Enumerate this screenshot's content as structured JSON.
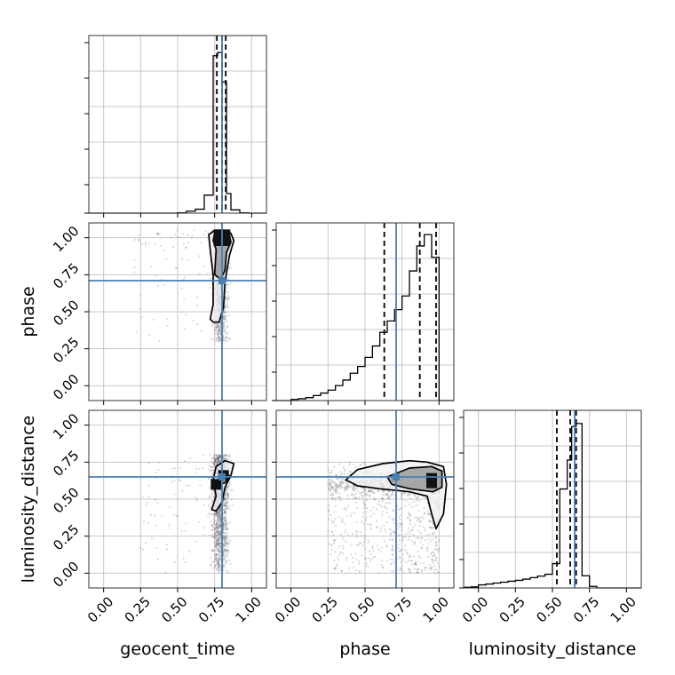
{
  "chart_data": {
    "type": "corner",
    "parameters": [
      "geocent_time",
      "phase",
      "luminosity_distance"
    ],
    "truths": {
      "geocent_time": 0.8,
      "phase": 0.71,
      "luminosity_distance": 0.65
    },
    "axis_range": [
      -0.1,
      1.1
    ],
    "tick_labels": [
      "0.00",
      "0.25",
      "0.50",
      "0.75",
      "1.00"
    ],
    "tick_values": [
      0,
      0.25,
      0.5,
      0.75,
      1.0
    ],
    "grid": true,
    "colors": {
      "truth": "#4a7fb5",
      "hist": "#000000",
      "contour": "#000000",
      "points": "#555555",
      "grid": "#c8c8c8"
    },
    "histograms": {
      "geocent_time": {
        "bins": [
          -0.1,
          -0.04,
          0.02,
          0.08,
          0.14,
          0.2,
          0.26,
          0.32,
          0.38,
          0.44,
          0.5,
          0.56,
          0.62,
          0.68,
          0.74,
          0.77,
          0.8,
          0.83,
          0.86,
          0.92,
          0.98,
          1.04,
          1.1
        ],
        "counts": [
          0,
          0,
          0,
          0,
          0,
          0,
          0,
          0,
          0,
          0,
          0.1,
          0.6,
          1.2,
          5.5,
          48,
          49,
          40,
          6,
          1,
          0.1,
          0,
          0
        ],
        "quantiles": [
          0.765,
          0.8,
          0.825
        ],
        "ymax": 52
      },
      "phase": {
        "bins": [
          -0.1,
          0.0,
          0.05,
          0.1,
          0.15,
          0.2,
          0.25,
          0.3,
          0.35,
          0.4,
          0.45,
          0.5,
          0.55,
          0.6,
          0.65,
          0.7,
          0.75,
          0.8,
          0.85,
          0.9,
          0.95,
          1.0,
          1.05,
          1.1
        ],
        "counts": [
          0,
          0.5,
          0.8,
          1.3,
          2.2,
          3.3,
          4.6,
          6.6,
          9.0,
          12.0,
          15.0,
          19.0,
          24.0,
          30.0,
          35.0,
          40.0,
          46.0,
          57.0,
          68.0,
          73.0,
          63.0,
          0,
          0
        ],
        "quantiles": [
          0.63,
          0.87,
          0.98
        ],
        "ymax": 75
      },
      "luminosity_distance": {
        "bins": [
          -0.1,
          -0.05,
          0.0,
          0.05,
          0.1,
          0.15,
          0.2,
          0.25,
          0.3,
          0.35,
          0.4,
          0.45,
          0.5,
          0.55,
          0.6,
          0.63,
          0.66,
          0.7,
          0.75,
          0.8,
          1.1
        ],
        "counts": [
          0.4,
          0.7,
          2.0,
          2.6,
          3.2,
          3.8,
          4.4,
          5.0,
          5.8,
          6.8,
          7.8,
          9.0,
          16.0,
          65.0,
          84.0,
          106.0,
          108.0,
          8.0,
          1.0,
          0,
          0
        ],
        "quantiles": [
          0.53,
          0.62,
          0.66
        ],
        "ymax": 112
      }
    },
    "panels_2d": [
      {
        "x": "geocent_time",
        "y": "phase",
        "contours": [
          [
            [
              0.72,
              0.45
            ],
            [
              0.74,
              0.55
            ],
            [
              0.74,
              0.75
            ],
            [
              0.72,
              0.92
            ],
            [
              0.71,
              1.02
            ],
            [
              0.75,
              1.05
            ],
            [
              0.8,
              1.05
            ],
            [
              0.86,
              1.03
            ],
            [
              0.88,
              0.98
            ],
            [
              0.85,
              0.88
            ],
            [
              0.82,
              0.7
            ],
            [
              0.81,
              0.53
            ],
            [
              0.78,
              0.43
            ],
            [
              0.74,
              0.43
            ]
          ],
          [
            [
              0.75,
              0.75
            ],
            [
              0.76,
              0.92
            ],
            [
              0.74,
              0.98
            ],
            [
              0.75,
              1.03
            ],
            [
              0.8,
              1.03
            ],
            [
              0.85,
              1.02
            ],
            [
              0.86,
              0.97
            ],
            [
              0.83,
              0.9
            ],
            [
              0.82,
              0.78
            ],
            [
              0.79,
              0.72
            ]
          ]
        ],
        "dense_cells": [
          [
            0.78,
            0.98
          ],
          [
            0.82,
            0.98
          ],
          [
            0.78,
            1.02
          ],
          [
            0.82,
            1.02
          ]
        ],
        "point_cloud": {
          "cx": 0.79,
          "sx": 0.035,
          "y_min": 0.3,
          "y_max": 1.05,
          "y_skew": "high",
          "sparse_x_min": 0.2
        }
      },
      {
        "x": "geocent_time",
        "y": "luminosity_distance",
        "contours": [
          [
            [
              0.73,
              0.43
            ],
            [
              0.76,
              0.52
            ],
            [
              0.74,
              0.63
            ],
            [
              0.76,
              0.72
            ],
            [
              0.82,
              0.76
            ],
            [
              0.88,
              0.74
            ],
            [
              0.86,
              0.66
            ],
            [
              0.82,
              0.58
            ],
            [
              0.8,
              0.48
            ],
            [
              0.76,
              0.42
            ]
          ],
          [
            [
              0.77,
              0.63
            ],
            [
              0.82,
              0.68
            ],
            [
              0.86,
              0.65
            ],
            [
              0.82,
              0.61
            ],
            [
              0.78,
              0.6
            ]
          ]
        ],
        "dense_cells": [
          [
            0.76,
            0.6
          ],
          [
            0.81,
            0.66
          ]
        ],
        "point_cloud": {
          "cx": 0.79,
          "sx": 0.04,
          "y_min": 0.0,
          "y_max": 0.8,
          "y_skew": "mid",
          "sparse_x_min": 0.25
        }
      },
      {
        "x": "phase",
        "y": "luminosity_distance",
        "contours": [
          [
            [
              0.37,
              0.63
            ],
            [
              0.45,
              0.7
            ],
            [
              0.62,
              0.74
            ],
            [
              0.8,
              0.76
            ],
            [
              0.92,
              0.75
            ],
            [
              1.03,
              0.72
            ],
            [
              1.05,
              0.6
            ],
            [
              1.03,
              0.4
            ],
            [
              0.98,
              0.3
            ],
            [
              0.95,
              0.4
            ],
            [
              0.92,
              0.52
            ],
            [
              0.8,
              0.55
            ],
            [
              0.6,
              0.57
            ],
            [
              0.45,
              0.59
            ]
          ],
          [
            [
              0.65,
              0.65
            ],
            [
              0.8,
              0.71
            ],
            [
              0.95,
              0.72
            ],
            [
              1.02,
              0.69
            ],
            [
              1.02,
              0.58
            ],
            [
              0.96,
              0.55
            ],
            [
              0.8,
              0.57
            ],
            [
              0.68,
              0.6
            ]
          ]
        ],
        "dense_cells": [
          [
            0.95,
            0.64
          ],
          [
            0.95,
            0.61
          ]
        ],
        "point_cloud": {
          "cx_min": 0.25,
          "cx_max": 1.0,
          "y_min": 0.0,
          "y_max": 0.75,
          "y_center": 0.6
        }
      }
    ]
  }
}
